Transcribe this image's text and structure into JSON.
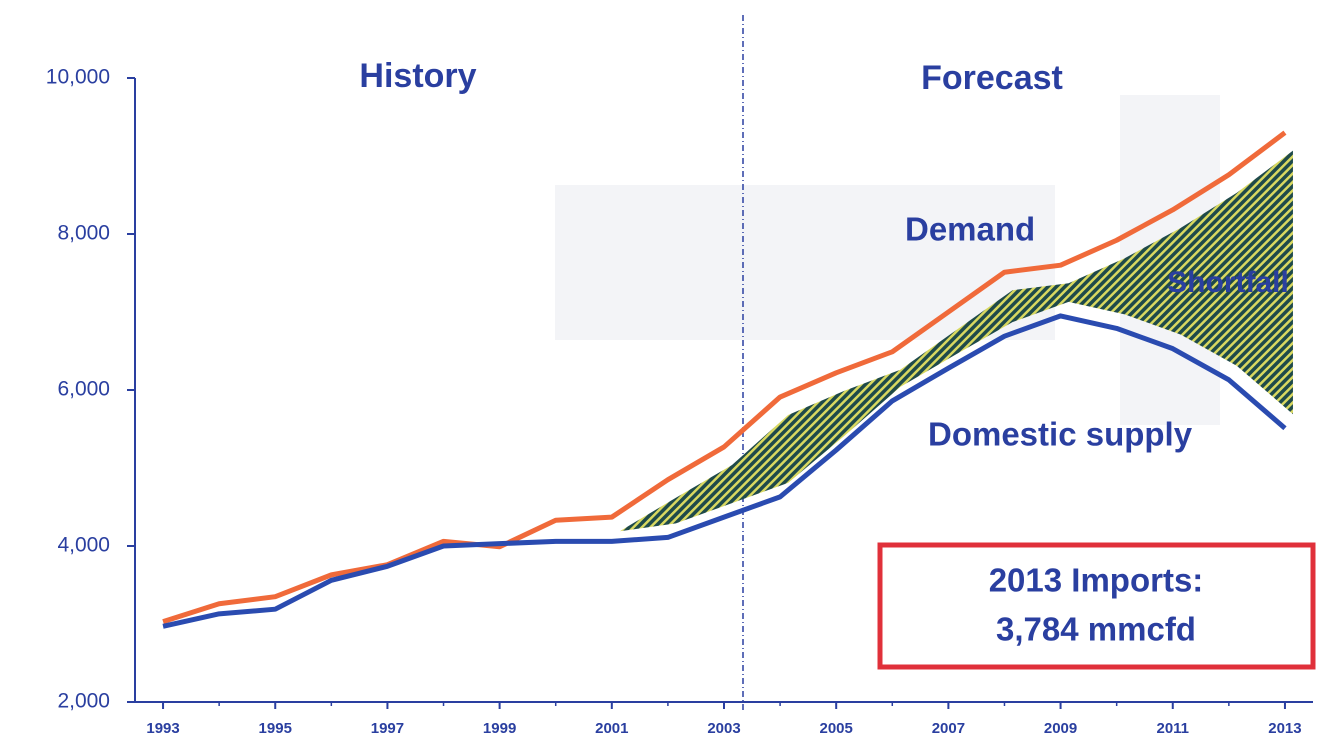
{
  "chart_data": {
    "type": "line",
    "x": [
      1993,
      1994,
      1995,
      1996,
      1997,
      1998,
      1999,
      2000,
      2001,
      2002,
      2003,
      2004,
      2005,
      2006,
      2007,
      2008,
      2009,
      2010,
      2011,
      2012,
      2013
    ],
    "series": [
      {
        "name": "Demand",
        "color": "#f06a3a",
        "values": [
          3030,
          3260,
          3350,
          3630,
          3760,
          4060,
          3990,
          4330,
          4370,
          4850,
          5270,
          5910,
          6220,
          6490,
          7000,
          7510,
          7600,
          7920,
          8310,
          8760,
          9300
        ]
      },
      {
        "name": "Domestic supply",
        "color": "#2a4bb0",
        "values": [
          2970,
          3130,
          3190,
          3560,
          3740,
          4000,
          4030,
          4060,
          4060,
          4110,
          4370,
          4630,
          5230,
          5860,
          6280,
          6690,
          6950,
          6790,
          6530,
          6130,
          5510
        ]
      }
    ],
    "xlim": [
      1992.5,
      2013.5
    ],
    "xticks": [
      1993,
      1995,
      1997,
      1999,
      2001,
      2003,
      2005,
      2007,
      2009,
      2011,
      2013
    ],
    "ylim": [
      2000,
      10000
    ],
    "yticks": [
      {
        "value": 2000,
        "label": "2,000"
      },
      {
        "value": 4000,
        "label": "4,000"
      },
      {
        "value": 6000,
        "label": "6,000"
      },
      {
        "value": 8000,
        "label": "8,000"
      },
      {
        "value": 10000,
        "label": "10,000"
      }
    ],
    "annotations": [
      "History",
      "Forecast",
      "Shortfall",
      "2013 Imports:",
      "3,784  mmcfd"
    ]
  }
}
